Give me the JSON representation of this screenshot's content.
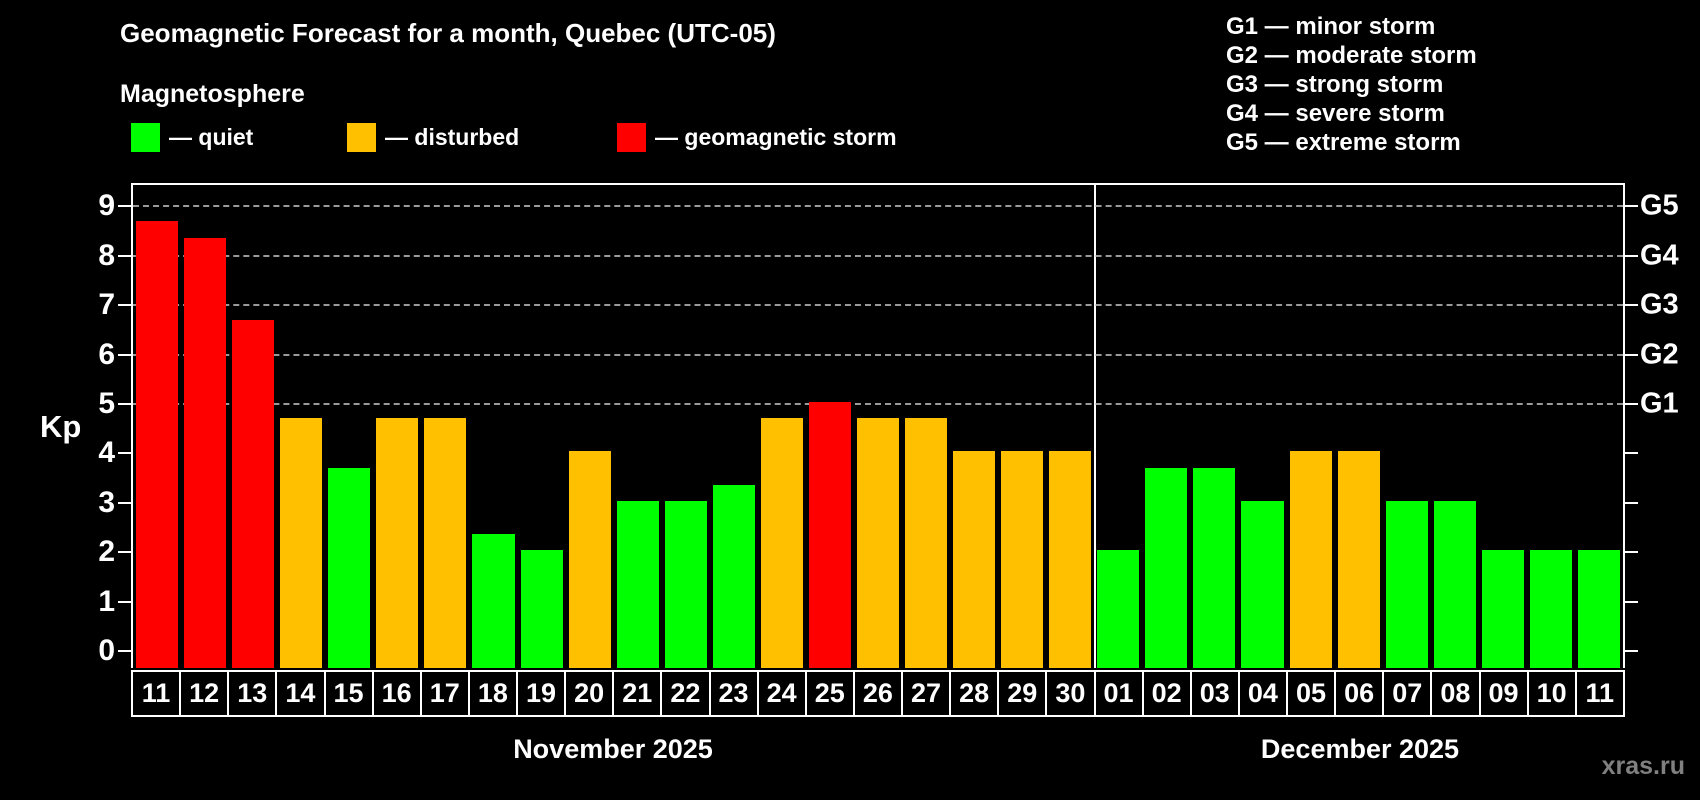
{
  "header": {
    "title": "Geomagnetic Forecast for a month, Quebec (UTC-05)",
    "subtitle": "Magnetosphere",
    "legend": [
      {
        "key": "quiet",
        "label": "— quiet",
        "color": "#00ff00"
      },
      {
        "key": "disturbed",
        "label": "— disturbed",
        "color": "#ffc000"
      },
      {
        "key": "storm",
        "label": "— geomagnetic storm",
        "color": "#ff0000"
      }
    ],
    "g_scale": [
      "G1 — minor storm",
      "G2 — moderate storm",
      "G3 — strong storm",
      "G4 — severe storm",
      "G5 — extreme storm"
    ]
  },
  "colors": {
    "background": "#000000",
    "quiet": "#00ff00",
    "disturbed": "#ffc000",
    "storm": "#ff0000",
    "grid": "#9a9a9a",
    "axis": "#ffffff",
    "watermark": "#808080"
  },
  "watermark": "xras.ru",
  "chart_data": {
    "type": "bar",
    "title": "Geomagnetic Forecast for a month, Quebec (UTC-05)",
    "ylabel": "Kp",
    "ylim": [
      0,
      9
    ],
    "yticks": [
      0,
      1,
      2,
      3,
      4,
      5,
      6,
      7,
      8,
      9
    ],
    "grid_on": true,
    "gridlines_at_kp": [
      5,
      6,
      7,
      8,
      9
    ],
    "right_axis": [
      {
        "kp": 5,
        "label": "G1"
      },
      {
        "kp": 6,
        "label": "G2"
      },
      {
        "kp": 7,
        "label": "G3"
      },
      {
        "kp": 8,
        "label": "G4"
      },
      {
        "kp": 9,
        "label": "G5"
      }
    ],
    "months": [
      {
        "label": "November 2025",
        "days": [
          {
            "day": "11",
            "kp": 8.67,
            "status": "storm"
          },
          {
            "day": "12",
            "kp": 8.33,
            "status": "storm"
          },
          {
            "day": "13",
            "kp": 6.67,
            "status": "storm"
          },
          {
            "day": "14",
            "kp": 4.67,
            "status": "disturbed"
          },
          {
            "day": "15",
            "kp": 3.67,
            "status": "quiet"
          },
          {
            "day": "16",
            "kp": 4.67,
            "status": "disturbed"
          },
          {
            "day": "17",
            "kp": 4.67,
            "status": "disturbed"
          },
          {
            "day": "18",
            "kp": 2.33,
            "status": "quiet"
          },
          {
            "day": "19",
            "kp": 2.0,
            "status": "quiet"
          },
          {
            "day": "20",
            "kp": 4.0,
            "status": "disturbed"
          },
          {
            "day": "21",
            "kp": 3.0,
            "status": "quiet"
          },
          {
            "day": "22",
            "kp": 3.0,
            "status": "quiet"
          },
          {
            "day": "23",
            "kp": 3.33,
            "status": "quiet"
          },
          {
            "day": "24",
            "kp": 4.67,
            "status": "disturbed"
          },
          {
            "day": "25",
            "kp": 5.0,
            "status": "storm"
          },
          {
            "day": "26",
            "kp": 4.67,
            "status": "disturbed"
          },
          {
            "day": "27",
            "kp": 4.67,
            "status": "disturbed"
          },
          {
            "day": "28",
            "kp": 4.0,
            "status": "disturbed"
          },
          {
            "day": "29",
            "kp": 4.0,
            "status": "disturbed"
          },
          {
            "day": "30",
            "kp": 4.0,
            "status": "disturbed"
          }
        ]
      },
      {
        "label": "December 2025",
        "days": [
          {
            "day": "01",
            "kp": 2.0,
            "status": "quiet"
          },
          {
            "day": "02",
            "kp": 3.67,
            "status": "quiet"
          },
          {
            "day": "03",
            "kp": 3.67,
            "status": "quiet"
          },
          {
            "day": "04",
            "kp": 3.0,
            "status": "quiet"
          },
          {
            "day": "05",
            "kp": 4.0,
            "status": "disturbed"
          },
          {
            "day": "06",
            "kp": 4.0,
            "status": "disturbed"
          },
          {
            "day": "07",
            "kp": 3.0,
            "status": "quiet"
          },
          {
            "day": "08",
            "kp": 3.0,
            "status": "quiet"
          },
          {
            "day": "09",
            "kp": 2.0,
            "status": "quiet"
          },
          {
            "day": "10",
            "kp": 2.0,
            "status": "quiet"
          },
          {
            "day": "11",
            "kp": 2.0,
            "status": "quiet"
          }
        ]
      }
    ]
  }
}
